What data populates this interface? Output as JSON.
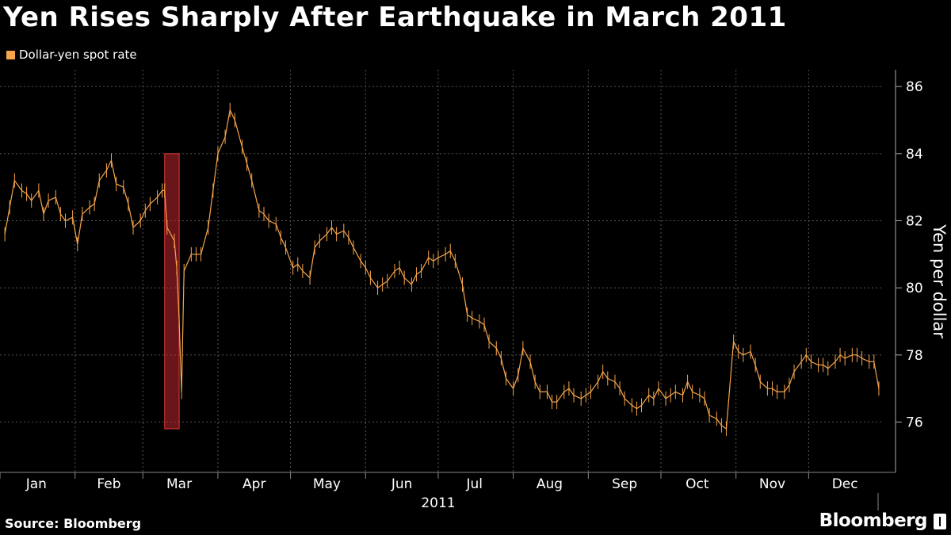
{
  "title": "Yen Rises Sharply After Earthquake in March 2011",
  "legend_label": "Dollar-yen spot rate",
  "source": "Source: Bloomberg",
  "brand": "Bloomberg",
  "colors": {
    "series": "#f7a54a",
    "highlight": "#c0262d",
    "background": "#000000"
  },
  "chart_data": {
    "type": "line",
    "ylabel": "Yen per dollar",
    "xlabel": "2011",
    "ylim": [
      74.5,
      86.5
    ],
    "yticks": [
      76,
      78,
      80,
      82,
      84,
      86
    ],
    "xlim": [
      "2011-01-01",
      "2011-12-31"
    ],
    "month_labels": [
      "Jan",
      "Feb",
      "Mar",
      "Apr",
      "May",
      "Jun",
      "Jul",
      "Aug",
      "Sep",
      "Oct",
      "Nov",
      "Dec"
    ],
    "grid": true,
    "legend_position": "top-left",
    "highlight_region": {
      "x_start": "2011-03-10",
      "x_end": "2011-03-16",
      "y_low": 75.8,
      "y_high": 84.0
    },
    "series": [
      {
        "name": "Dollar-yen spot rate",
        "points": [
          [
            "2011-01-03",
            81.6
          ],
          [
            "2011-01-05",
            82.4
          ],
          [
            "2011-01-07",
            83.2
          ],
          [
            "2011-01-10",
            82.9
          ],
          [
            "2011-01-12",
            82.8
          ],
          [
            "2011-01-14",
            82.6
          ],
          [
            "2011-01-17",
            82.9
          ],
          [
            "2011-01-19",
            82.2
          ],
          [
            "2011-01-21",
            82.6
          ],
          [
            "2011-01-24",
            82.7
          ],
          [
            "2011-01-26",
            82.2
          ],
          [
            "2011-01-28",
            82.0
          ],
          [
            "2011-01-31",
            82.1
          ],
          [
            "2011-02-02",
            81.3
          ],
          [
            "2011-02-04",
            82.2
          ],
          [
            "2011-02-07",
            82.4
          ],
          [
            "2011-02-09",
            82.5
          ],
          [
            "2011-02-11",
            83.2
          ],
          [
            "2011-02-14",
            83.5
          ],
          [
            "2011-02-16",
            83.8
          ],
          [
            "2011-02-18",
            83.1
          ],
          [
            "2011-02-21",
            83.0
          ],
          [
            "2011-02-23",
            82.5
          ],
          [
            "2011-02-25",
            81.8
          ],
          [
            "2011-02-28",
            82.0
          ],
          [
            "2011-03-02",
            82.3
          ],
          [
            "2011-03-04",
            82.5
          ],
          [
            "2011-03-07",
            82.7
          ],
          [
            "2011-03-09",
            82.9
          ],
          [
            "2011-03-10",
            82.9
          ],
          [
            "2011-03-11",
            81.8
          ],
          [
            "2011-03-14",
            81.4
          ],
          [
            "2011-03-15",
            80.6
          ],
          [
            "2011-03-16",
            79.0
          ],
          [
            "2011-03-17",
            76.9
          ],
          [
            "2011-03-18",
            80.5
          ],
          [
            "2011-03-21",
            81.0
          ],
          [
            "2011-03-23",
            81.0
          ],
          [
            "2011-03-25",
            81.0
          ],
          [
            "2011-03-28",
            81.8
          ],
          [
            "2011-03-30",
            82.9
          ],
          [
            "2011-04-01",
            84.0
          ],
          [
            "2011-04-04",
            84.5
          ],
          [
            "2011-04-06",
            85.3
          ],
          [
            "2011-04-08",
            85.0
          ],
          [
            "2011-04-11",
            84.2
          ],
          [
            "2011-04-13",
            83.7
          ],
          [
            "2011-04-15",
            83.2
          ],
          [
            "2011-04-18",
            82.3
          ],
          [
            "2011-04-20",
            82.2
          ],
          [
            "2011-04-22",
            82.0
          ],
          [
            "2011-04-25",
            81.9
          ],
          [
            "2011-04-27",
            81.5
          ],
          [
            "2011-04-29",
            81.2
          ],
          [
            "2011-05-02",
            80.6
          ],
          [
            "2011-05-04",
            80.7
          ],
          [
            "2011-05-06",
            80.5
          ],
          [
            "2011-05-09",
            80.3
          ],
          [
            "2011-05-11",
            81.2
          ],
          [
            "2011-05-13",
            81.4
          ],
          [
            "2011-05-16",
            81.6
          ],
          [
            "2011-05-18",
            81.8
          ],
          [
            "2011-05-20",
            81.6
          ],
          [
            "2011-05-23",
            81.7
          ],
          [
            "2011-05-25",
            81.5
          ],
          [
            "2011-05-27",
            81.2
          ],
          [
            "2011-05-30",
            80.8
          ],
          [
            "2011-06-01",
            80.6
          ],
          [
            "2011-06-03",
            80.3
          ],
          [
            "2011-06-06",
            80.0
          ],
          [
            "2011-06-08",
            80.1
          ],
          [
            "2011-06-10",
            80.2
          ],
          [
            "2011-06-13",
            80.5
          ],
          [
            "2011-06-15",
            80.6
          ],
          [
            "2011-06-17",
            80.3
          ],
          [
            "2011-06-20",
            80.1
          ],
          [
            "2011-06-22",
            80.4
          ],
          [
            "2011-06-24",
            80.5
          ],
          [
            "2011-06-27",
            80.9
          ],
          [
            "2011-06-29",
            80.8
          ],
          [
            "2011-07-01",
            80.9
          ],
          [
            "2011-07-04",
            81.0
          ],
          [
            "2011-07-06",
            81.1
          ],
          [
            "2011-07-08",
            80.8
          ],
          [
            "2011-07-11",
            80.1
          ],
          [
            "2011-07-13",
            79.2
          ],
          [
            "2011-07-15",
            79.1
          ],
          [
            "2011-07-18",
            79.0
          ],
          [
            "2011-07-20",
            78.9
          ],
          [
            "2011-07-22",
            78.4
          ],
          [
            "2011-07-25",
            78.2
          ],
          [
            "2011-07-27",
            77.9
          ],
          [
            "2011-07-29",
            77.3
          ],
          [
            "2011-08-01",
            77.0
          ],
          [
            "2011-08-03",
            77.4
          ],
          [
            "2011-08-05",
            78.2
          ],
          [
            "2011-08-08",
            77.8
          ],
          [
            "2011-08-10",
            77.2
          ],
          [
            "2011-08-12",
            76.9
          ],
          [
            "2011-08-15",
            76.9
          ],
          [
            "2011-08-17",
            76.6
          ],
          [
            "2011-08-19",
            76.6
          ],
          [
            "2011-08-22",
            76.9
          ],
          [
            "2011-08-24",
            77.0
          ],
          [
            "2011-08-26",
            76.8
          ],
          [
            "2011-08-29",
            76.7
          ],
          [
            "2011-08-31",
            76.8
          ],
          [
            "2011-09-02",
            76.9
          ],
          [
            "2011-09-05",
            77.2
          ],
          [
            "2011-09-07",
            77.5
          ],
          [
            "2011-09-09",
            77.3
          ],
          [
            "2011-09-12",
            77.2
          ],
          [
            "2011-09-14",
            77.0
          ],
          [
            "2011-09-16",
            76.7
          ],
          [
            "2011-09-19",
            76.5
          ],
          [
            "2011-09-21",
            76.4
          ],
          [
            "2011-09-23",
            76.5
          ],
          [
            "2011-09-26",
            76.8
          ],
          [
            "2011-09-28",
            76.7
          ],
          [
            "2011-09-30",
            77.0
          ],
          [
            "2011-10-03",
            76.7
          ],
          [
            "2011-10-05",
            76.8
          ],
          [
            "2011-10-07",
            76.9
          ],
          [
            "2011-10-10",
            76.8
          ],
          [
            "2011-10-12",
            77.2
          ],
          [
            "2011-10-14",
            76.9
          ],
          [
            "2011-10-17",
            76.8
          ],
          [
            "2011-10-19",
            76.7
          ],
          [
            "2011-10-21",
            76.2
          ],
          [
            "2011-10-24",
            76.1
          ],
          [
            "2011-10-26",
            75.9
          ],
          [
            "2011-10-28",
            75.8
          ],
          [
            "2011-10-31",
            78.4
          ],
          [
            "2011-11-02",
            78.1
          ],
          [
            "2011-11-04",
            78.0
          ],
          [
            "2011-11-07",
            78.1
          ],
          [
            "2011-11-09",
            77.7
          ],
          [
            "2011-11-11",
            77.2
          ],
          [
            "2011-11-14",
            77.0
          ],
          [
            "2011-11-16",
            77.0
          ],
          [
            "2011-11-18",
            76.9
          ],
          [
            "2011-11-21",
            76.9
          ],
          [
            "2011-11-23",
            77.1
          ],
          [
            "2011-11-25",
            77.5
          ],
          [
            "2011-11-28",
            77.8
          ],
          [
            "2011-11-30",
            78.0
          ],
          [
            "2011-12-02",
            77.8
          ],
          [
            "2011-12-05",
            77.7
          ],
          [
            "2011-12-07",
            77.7
          ],
          [
            "2011-12-09",
            77.6
          ],
          [
            "2011-12-12",
            77.8
          ],
          [
            "2011-12-14",
            78.0
          ],
          [
            "2011-12-16",
            77.9
          ],
          [
            "2011-12-19",
            78.0
          ],
          [
            "2011-12-21",
            78.0
          ],
          [
            "2011-12-23",
            77.9
          ],
          [
            "2011-12-26",
            77.8
          ],
          [
            "2011-12-28",
            77.8
          ],
          [
            "2011-12-30",
            77.0
          ]
        ]
      }
    ]
  }
}
